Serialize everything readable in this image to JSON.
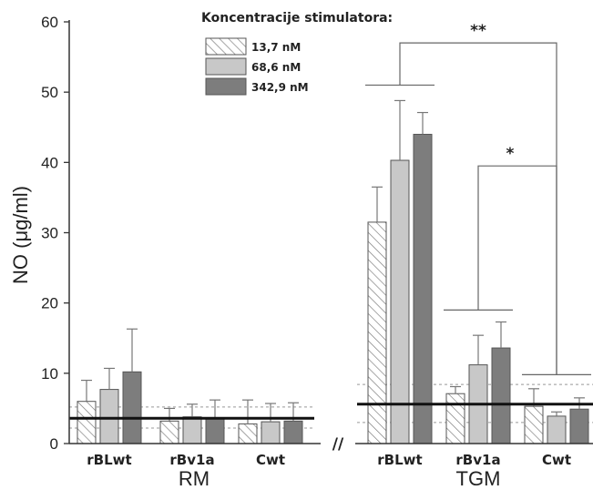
{
  "chart_data": {
    "type": "bar",
    "ylabel": "NO (μg/ml)",
    "ylim": [
      0,
      60
    ],
    "yticks": [
      "0",
      "10",
      "20",
      "30",
      "40",
      "50",
      "60"
    ],
    "legend_title": "Koncentracije stimulatora:",
    "legend_position": "top-center",
    "groups": [
      {
        "label": "RM",
        "categories": [
          "rBLwt",
          "rBv1a",
          "Cwt"
        ],
        "baseline": 3.6,
        "baseline_band": [
          2.2,
          5.2
        ]
      },
      {
        "label": "TGM",
        "categories": [
          "rBLwt",
          "rBv1a",
          "Cwt"
        ],
        "baseline": 5.6,
        "baseline_band": [
          3.0,
          8.4
        ]
      }
    ],
    "series": [
      {
        "name": "13,7 nM",
        "pattern": "hatched",
        "color": "#ffffff",
        "values": [
          6.0,
          3.2,
          2.8,
          31.5,
          7.1,
          5.3
        ],
        "errors": [
          3.0,
          1.8,
          3.4,
          5.0,
          1.0,
          2.5
        ]
      },
      {
        "name": "68,6 nM",
        "pattern": "solid",
        "color": "#c8c8c8",
        "values": [
          7.7,
          3.8,
          3.1,
          40.3,
          11.2,
          3.9
        ],
        "errors": [
          3.0,
          1.8,
          2.6,
          8.5,
          4.2,
          0.6
        ]
      },
      {
        "name": "342,9 nM",
        "pattern": "solid",
        "color": "#7d7d7d",
        "values": [
          10.2,
          3.6,
          3.2,
          44.0,
          13.6,
          4.9
        ],
        "errors": [
          6.1,
          2.6,
          2.6,
          3.1,
          3.7,
          1.6
        ]
      }
    ],
    "significance": [
      "**",
      "*"
    ],
    "axis_break": "//"
  }
}
